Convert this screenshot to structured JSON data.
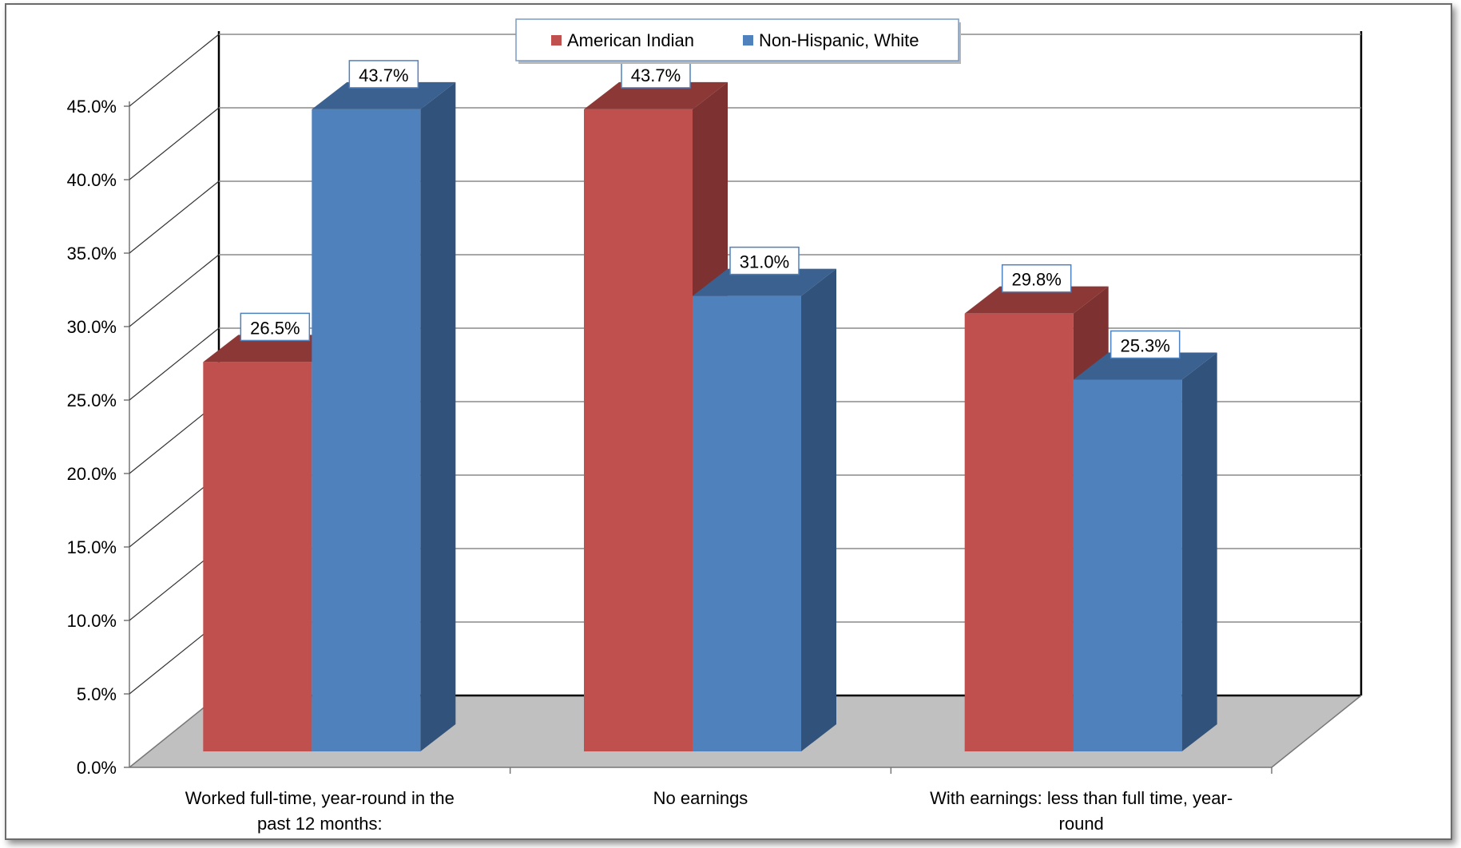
{
  "chart_data": {
    "type": "bar",
    "title": "",
    "xlabel": "",
    "ylabel": "",
    "ylim": [
      0,
      45
    ],
    "ytick_step": 5,
    "ytick_format": "percent_1dp",
    "grid": true,
    "legend_position": "top-center",
    "categories": [
      [
        "Worked full-time, year-round in the",
        "past 12 months:"
      ],
      [
        "No earnings"
      ],
      [
        "With earnings: less than full time, year-",
        "round"
      ]
    ],
    "series": [
      {
        "name": "American Indian",
        "values": [
          26.5,
          43.7,
          29.8
        ],
        "labels": [
          "26.5%",
          "43.7%",
          "29.8%"
        ],
        "color": "#c0504d",
        "side_color": "#7d3231",
        "top_color": "#8c3836"
      },
      {
        "name": "Non-Hispanic, White",
        "values": [
          43.7,
          31.0,
          25.3
        ],
        "labels": [
          "43.7%",
          "31.0%",
          "25.3%"
        ],
        "color": "#4f81bd",
        "side_color": "#31527a",
        "top_color": "#3a6190"
      }
    ]
  }
}
